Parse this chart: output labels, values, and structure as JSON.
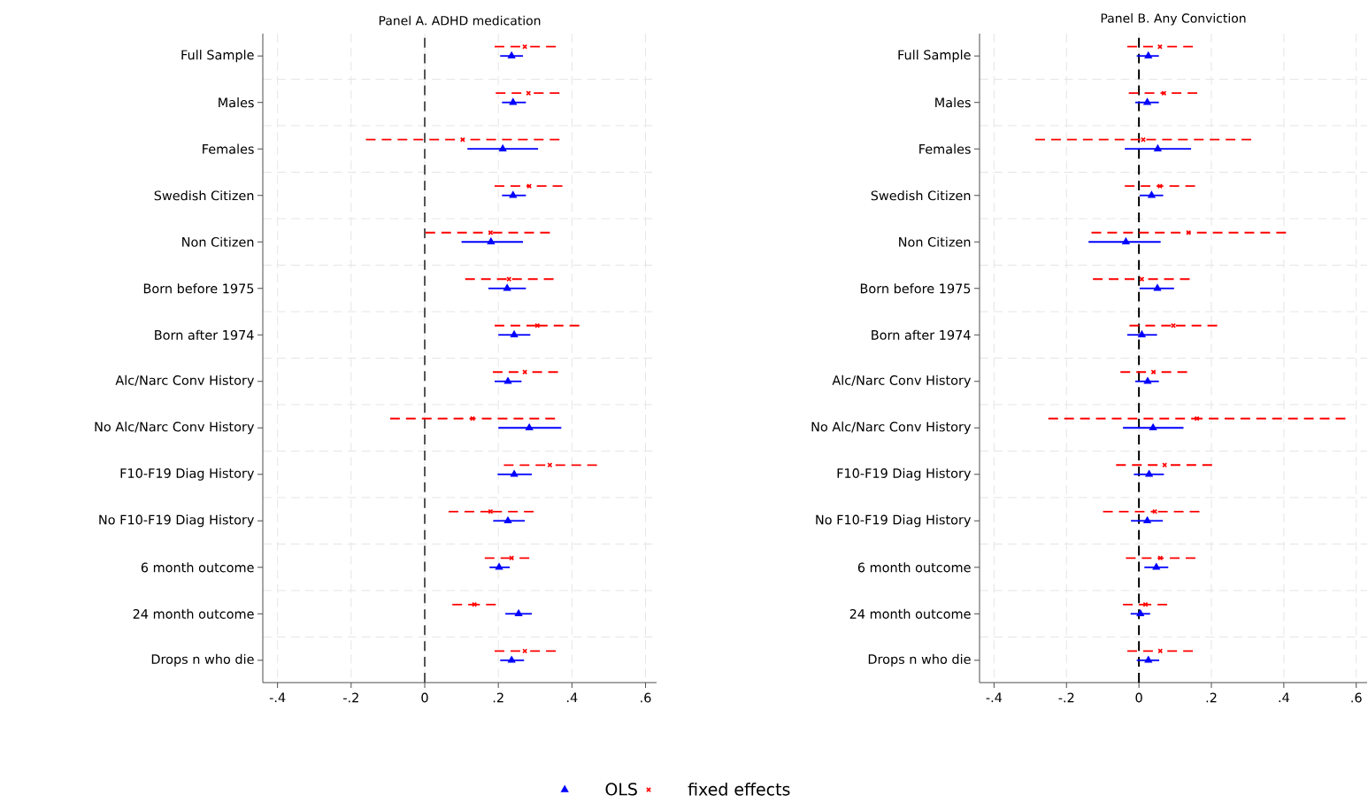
{
  "chart_data": [
    {
      "type": "scatter",
      "orientation": "horizontal",
      "title": "Panel A. ADHD medication",
      "categories": [
        "Full Sample",
        "Males",
        "Females",
        "Swedish Citizen",
        "Non Citizen",
        "Born before 1975",
        "Born after 1974",
        "Alc/Narc Conv History",
        "No Alc/Narc Conv History",
        "F10-F19 Diag History",
        "No F10-F19 Diag History",
        "6 month outcome",
        "24 month outcome",
        "Drops n who die"
      ],
      "series": [
        {
          "name": "OLS",
          "color": "#0000ff",
          "marker": "triangle",
          "line_style": "solid",
          "values": [
            0.236,
            0.24,
            0.212,
            0.24,
            0.18,
            0.224,
            0.243,
            0.226,
            0.284,
            0.243,
            0.226,
            0.202,
            0.255,
            0.236
          ],
          "errors": [
            [
              0.205,
              0.267
            ],
            [
              0.21,
              0.275
            ],
            [
              0.116,
              0.308
            ],
            [
              0.21,
              0.275
            ],
            [
              0.1,
              0.267
            ],
            [
              0.173,
              0.275
            ],
            [
              0.2,
              0.287
            ],
            [
              0.19,
              0.263
            ],
            [
              0.2,
              0.371
            ],
            [
              0.198,
              0.291
            ],
            [
              0.186,
              0.272
            ],
            [
              0.176,
              0.231
            ],
            [
              0.219,
              0.291
            ],
            [
              0.205,
              0.27
            ]
          ]
        },
        {
          "name": "fixed effects",
          "color": "#ff0000",
          "marker": "cross",
          "line_style": "dashed",
          "values": [
            0.272,
            0.282,
            0.103,
            0.284,
            0.179,
            0.229,
            0.306,
            0.272,
            0.13,
            0.34,
            0.179,
            0.236,
            0.135,
            0.272
          ],
          "errors": [
            [
              0.19,
              0.356
            ],
            [
              0.193,
              0.366
            ],
            [
              -0.16,
              0.366
            ],
            [
              0.19,
              0.374
            ],
            [
              0.002,
              0.34
            ],
            [
              0.11,
              0.35
            ],
            [
              0.19,
              0.42
            ],
            [
              0.185,
              0.362
            ],
            [
              -0.094,
              0.354
            ],
            [
              0.215,
              0.468
            ],
            [
              0.065,
              0.296
            ],
            [
              0.163,
              0.284
            ],
            [
              0.075,
              0.193
            ],
            [
              0.19,
              0.356
            ]
          ]
        }
      ],
      "xlim": [
        -0.44,
        0.63
      ],
      "xticks": [
        {
          "value": -0.4,
          "label": "-.4"
        },
        {
          "value": -0.2,
          "label": "-.2"
        },
        0,
        {
          "value": 0.2,
          "label": ".2"
        },
        {
          "value": 0.4,
          "label": ".4"
        },
        {
          "value": 0.6,
          "label": ".6"
        }
      ],
      "ref_lines": [
        {
          "axis": "x",
          "value": 0,
          "color": "#555555",
          "line_style": "dashed"
        }
      ],
      "grid": true,
      "legend": "bottom"
    },
    {
      "type": "scatter",
      "orientation": "horizontal",
      "title": "Panel B. Any Conviction",
      "categories": [
        "Full Sample",
        "Males",
        "Females",
        "Swedish Citizen",
        "Non Citizen",
        "Born before 1975",
        "Born after 1974",
        "Alc/Narc Conv History",
        "No Alc/Narc Conv History",
        "F10-F19 Diag History",
        "No F10-F19 Diag History",
        "6 month outcome",
        "24 month outcome",
        "Drops n who die"
      ],
      "series": [
        {
          "color": "#0000ff",
          "marker": "triangle",
          "line_style": "solid",
          "values": [
            0.026,
            0.023,
            0.052,
            0.035,
            -0.036,
            0.051,
            0.008,
            0.024,
            0.039,
            0.028,
            0.023,
            0.048,
            0.004,
            0.026
          ],
          "errors": [
            [
              -0.006,
              0.055
            ],
            [
              -0.01,
              0.055
            ],
            [
              -0.039,
              0.144
            ],
            [
              0.002,
              0.067
            ],
            [
              -0.139,
              0.06
            ],
            [
              0.002,
              0.097
            ],
            [
              -0.032,
              0.05
            ],
            [
              -0.01,
              0.055
            ],
            [
              -0.044,
              0.123
            ],
            [
              -0.014,
              0.069
            ],
            [
              -0.022,
              0.066
            ],
            [
              0.015,
              0.081
            ],
            [
              -0.023,
              0.031
            ],
            [
              -0.006,
              0.056
            ]
          ]
        },
        {
          "color": "#ff0000",
          "marker": "cross",
          "line_style": "dashed",
          "values": [
            0.058,
            0.069,
            0.012,
            0.058,
            0.137,
            0.008,
            0.095,
            0.04,
            0.16,
            0.071,
            0.044,
            0.059,
            0.018,
            0.059
          ],
          "errors": [
            [
              -0.032,
              0.149
            ],
            [
              -0.028,
              0.161
            ],
            [
              -0.286,
              0.31
            ],
            [
              -0.039,
              0.155
            ],
            [
              -0.131,
              0.406
            ],
            [
              -0.127,
              0.14
            ],
            [
              -0.026,
              0.216
            ],
            [
              -0.051,
              0.133
            ],
            [
              -0.25,
              0.57
            ],
            [
              -0.063,
              0.202
            ],
            [
              -0.099,
              0.167
            ],
            [
              -0.036,
              0.156
            ],
            [
              -0.044,
              0.078
            ],
            [
              -0.032,
              0.149
            ]
          ]
        }
      ],
      "xlim": [
        -0.44,
        0.63
      ],
      "xticks": [
        {
          "value": -0.4,
          "label": "-.4"
        },
        {
          "value": -0.2,
          "label": "-.2"
        },
        0,
        {
          "value": 0.2,
          "label": ".2"
        },
        {
          "value": 0.4,
          "label": ".4"
        },
        {
          "value": 0.6,
          "label": ".6"
        }
      ],
      "ref_lines": [
        {
          "axis": "x",
          "value": 0,
          "color": "#000000",
          "line_style": "dashed"
        }
      ],
      "grid": true
    }
  ]
}
